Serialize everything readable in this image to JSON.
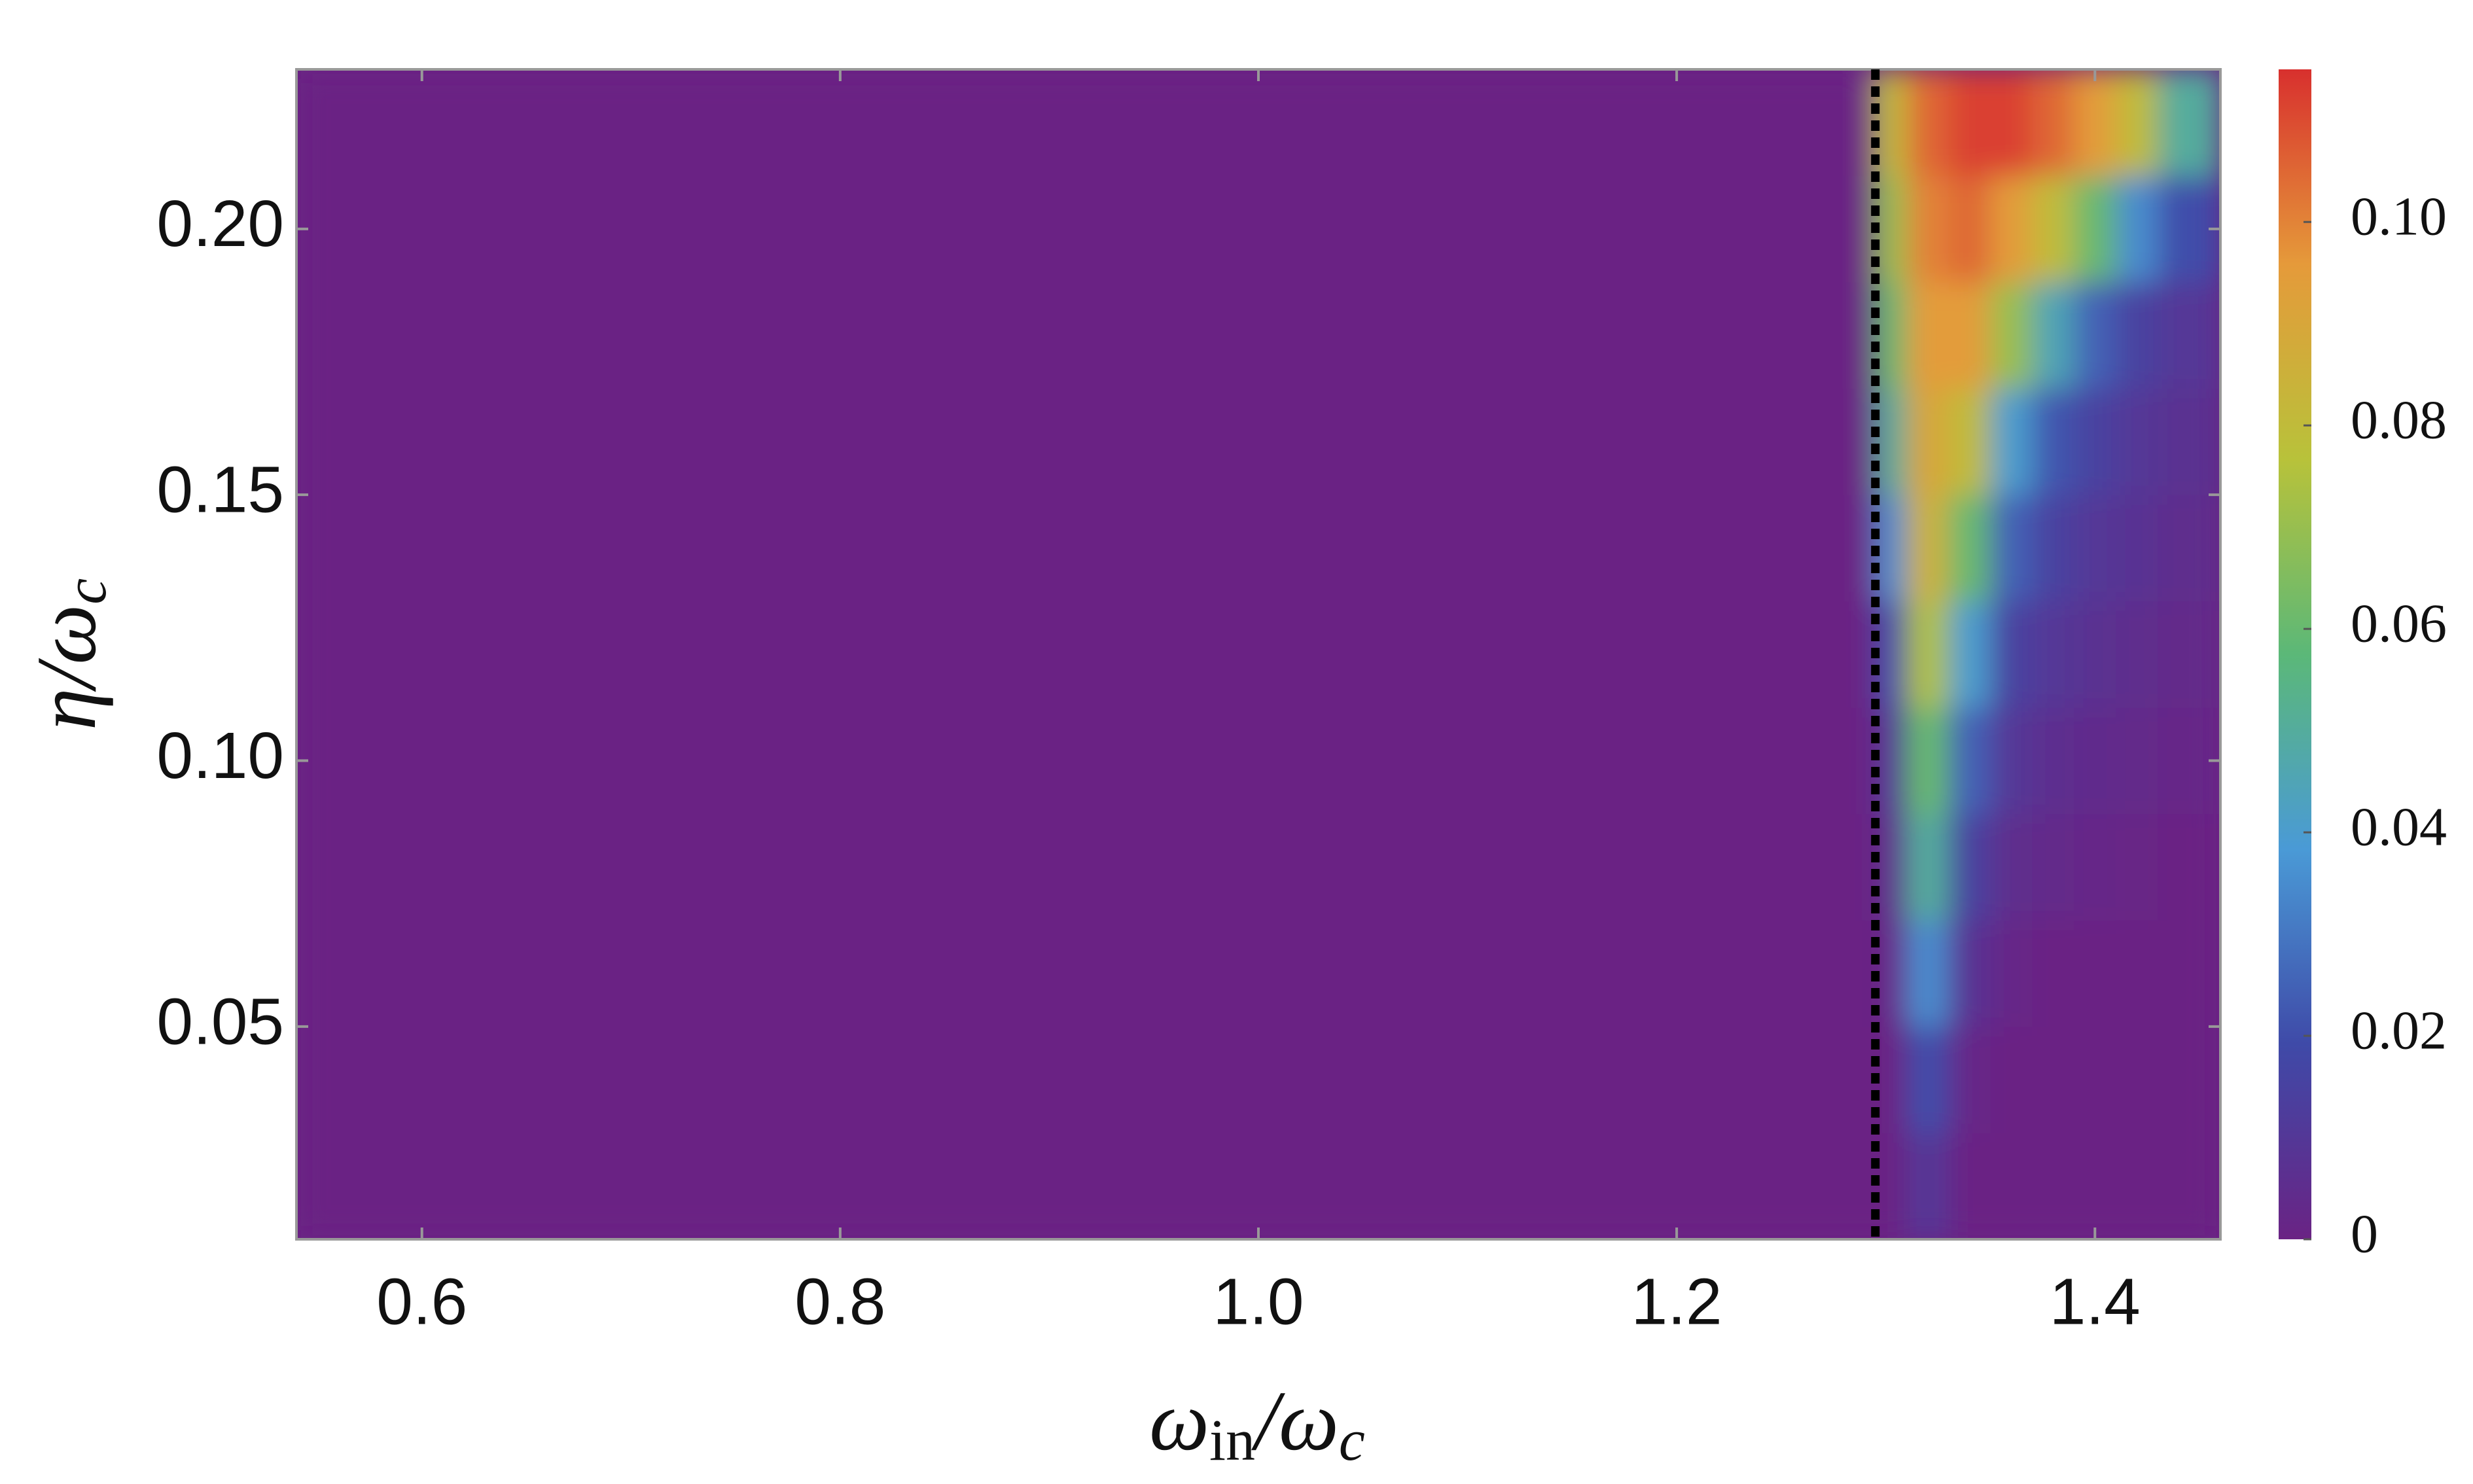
{
  "chart_data": {
    "type": "heatmap",
    "xlabel_parts": [
      "ω",
      "in",
      "/ω",
      "c"
    ],
    "ylabel_parts": [
      "η/ω",
      "c"
    ],
    "xlim": [
      0.54,
      1.46
    ],
    "ylim": [
      0.01,
      0.23
    ],
    "xticks": [
      0.6,
      0.8,
      {
        "value": 1,
        "label": "1.0"
      },
      1.2,
      1.4
    ],
    "yticks": [
      {
        "value": 0.05,
        "label": "0.05"
      },
      {
        "value": 0.1,
        "label": "0.10"
      },
      {
        "value": 0.15,
        "label": "0.15"
      },
      {
        "value": 0.2,
        "label": "0.20"
      }
    ],
    "x_bins": [
      0.54,
      1.295,
      1.31,
      1.33,
      1.35,
      1.37,
      1.39,
      1.41,
      1.43,
      1.46
    ],
    "y_bins": [
      0.01,
      0.03,
      0.05,
      0.07,
      0.09,
      0.11,
      0.13,
      0.15,
      0.17,
      0.19,
      0.21,
      0.23
    ],
    "z": [
      [
        0,
        0,
        0.01,
        0,
        0,
        0,
        0,
        0,
        0
      ],
      [
        0,
        0,
        0.02,
        0.002,
        0,
        0,
        0,
        0,
        0
      ],
      [
        0,
        0.002,
        0.035,
        0.008,
        0.002,
        0,
        0,
        0,
        0
      ],
      [
        0,
        0.005,
        0.05,
        0.015,
        0.005,
        0.003,
        0.002,
        0.001,
        0
      ],
      [
        0,
        0.01,
        0.06,
        0.025,
        0.01,
        0.006,
        0.004,
        0.003,
        0.002
      ],
      [
        0,
        0.02,
        0.075,
        0.04,
        0.015,
        0.01,
        0.007,
        0.005,
        0.003
      ],
      [
        0,
        0.035,
        0.085,
        0.06,
        0.025,
        0.015,
        0.01,
        0.008,
        0.005
      ],
      [
        0,
        0.05,
        0.09,
        0.08,
        0.04,
        0.022,
        0.015,
        0.01,
        0.007
      ],
      [
        0,
        0.06,
        0.095,
        0.095,
        0.07,
        0.045,
        0.025,
        0.015,
        0.01
      ],
      [
        0,
        0.07,
        0.1,
        0.105,
        0.095,
        0.08,
        0.06,
        0.035,
        0.02
      ],
      [
        0,
        0.08,
        0.105,
        0.112,
        0.112,
        0.105,
        0.095,
        0.08,
        0.05
      ]
    ],
    "clim": [
      0,
      0.115
    ],
    "cticks": [
      0,
      0.02,
      0.04,
      0.06,
      0.08,
      {
        "value": 0.1,
        "label": "0.10"
      }
    ],
    "colormap": [
      "#6a2384",
      "#3f4aa8",
      "#4a9ad6",
      "#5bb878",
      "#b8c23a",
      "#e59a3a",
      "#d8302e"
    ],
    "vline": 1.295
  }
}
